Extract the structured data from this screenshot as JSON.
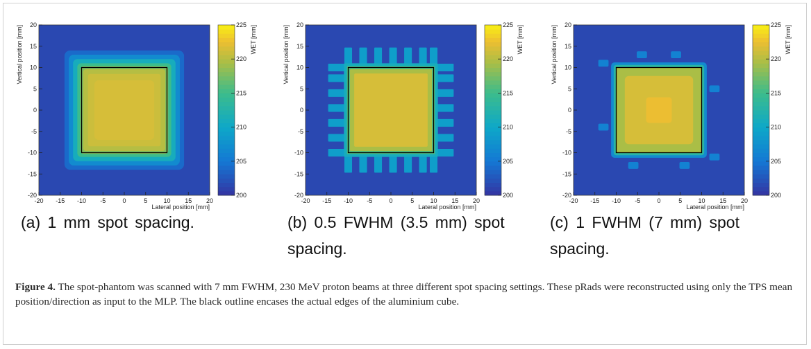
{
  "figure": {
    "label": "Figure 4.",
    "caption": "The spot-phantom was scanned with 7 mm FWHM, 230 MeV proton beams at three different spot spacing settings. These pRads were reconstructed using only the TPS mean position/direction as input to the MLP. The black outline encases the actual edges of the aluminium cube."
  },
  "panels": [
    {
      "caption": "(a) 1 mm spot spacing.",
      "style": "smooth"
    },
    {
      "caption": "(b) 0.5 FWHM (3.5 mm) spot spacing.",
      "style": "spiky"
    },
    {
      "caption": "(c) 1 FWHM (7 mm) spot spacing.",
      "style": "blob"
    }
  ],
  "chart_data": [
    {
      "type": "heatmap",
      "xlabel": "Lateral position [mm]",
      "ylabel": "Vertical position [mm]",
      "colorbar_label": "WET [mm]",
      "xlim": [
        -20,
        20
      ],
      "ylim": [
        -20,
        20
      ],
      "zlim": [
        200,
        225
      ],
      "xticks": [
        -20,
        -15,
        -10,
        -5,
        0,
        5,
        10,
        15,
        20
      ],
      "yticks": [
        -20,
        -15,
        -10,
        -5,
        0,
        5,
        10,
        15,
        20
      ],
      "cticks": [
        200,
        205,
        210,
        215,
        220,
        225
      ],
      "outline": {
        "x": [
          -10,
          10
        ],
        "y": [
          -10,
          10
        ]
      }
    },
    {
      "type": "heatmap",
      "xlabel": "Lateral position [mm]",
      "ylabel": "Vertical position [mm]",
      "colorbar_label": "WET [mm]",
      "xlim": [
        -20,
        20
      ],
      "ylim": [
        -20,
        20
      ],
      "zlim": [
        200,
        225
      ],
      "xticks": [
        -20,
        -15,
        -10,
        -5,
        0,
        5,
        10,
        15,
        20
      ],
      "yticks": [
        -20,
        -15,
        -10,
        -5,
        0,
        5,
        10,
        15,
        20
      ],
      "cticks": [
        200,
        205,
        210,
        215,
        220,
        225
      ],
      "outline": {
        "x": [
          -10,
          10
        ],
        "y": [
          -10,
          10
        ]
      }
    },
    {
      "type": "heatmap",
      "xlabel": "Lateral position [mm]",
      "ylabel": "Vertical position [mm]",
      "colorbar_label": "WET [mm]",
      "xlim": [
        -20,
        20
      ],
      "ylim": [
        -20,
        20
      ],
      "zlim": [
        200,
        225
      ],
      "xticks": [
        -20,
        -15,
        -10,
        -5,
        0,
        5,
        10,
        15,
        20
      ],
      "yticks": [
        -20,
        -15,
        -10,
        -5,
        0,
        5,
        10,
        15,
        20
      ],
      "cticks": [
        200,
        205,
        210,
        215,
        220,
        225
      ],
      "outline": {
        "x": [
          -10,
          10
        ],
        "y": [
          -10,
          10
        ]
      }
    }
  ]
}
